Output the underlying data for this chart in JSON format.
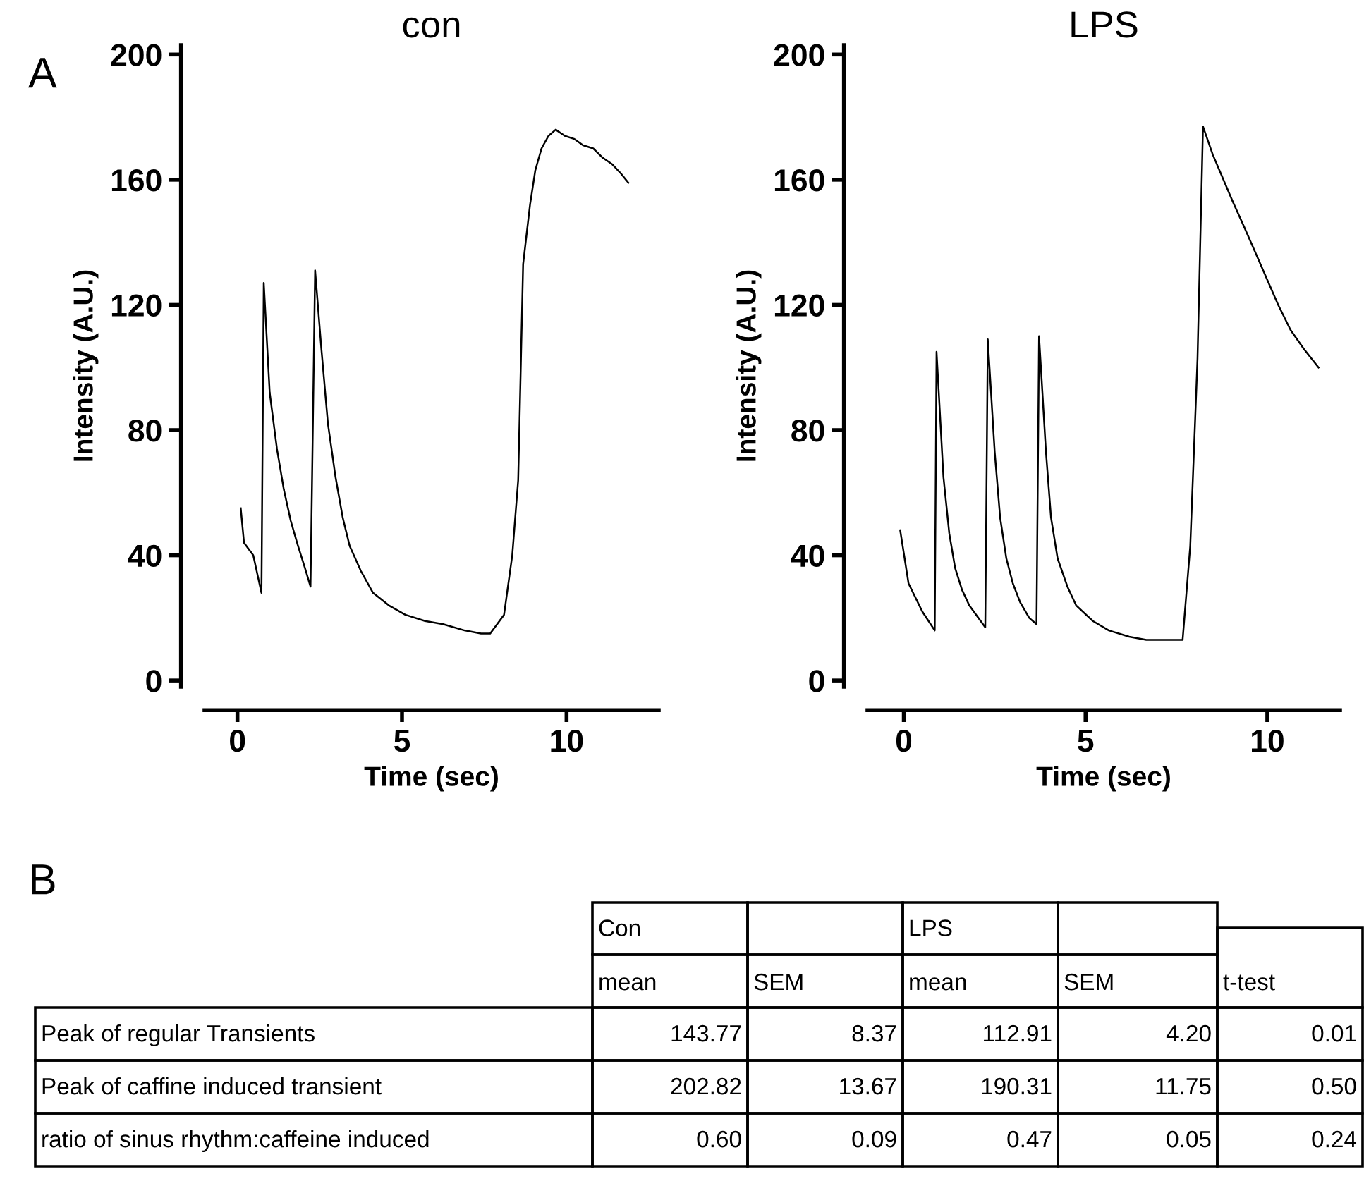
{
  "chart_data": [
    {
      "type": "line",
      "title": "con",
      "xlabel": "Time (sec)",
      "ylabel": "Intensity (A.U.)",
      "annotations": [
        "A"
      ],
      "xlim": [
        -1,
        12.8
      ],
      "ylim": [
        -2,
        203
      ],
      "xticks": [
        0,
        5,
        10
      ],
      "yticks": [
        0,
        40,
        80,
        120,
        160,
        200
      ],
      "series": [
        {
          "color": "#000000",
          "x": [
            0.1,
            0.2,
            0.48,
            0.73,
            0.8,
            0.98,
            1.2,
            1.41,
            1.62,
            1.84,
            2.05,
            2.22,
            2.36,
            2.55,
            2.75,
            2.98,
            3.2,
            3.41,
            3.75,
            4.12,
            4.6,
            5.1,
            5.7,
            6.25,
            6.9,
            7.4,
            7.68,
            8.1,
            8.35,
            8.53,
            8.68,
            8.89,
            9.05,
            9.24,
            9.45,
            9.67,
            9.95,
            10.24,
            10.5,
            10.81,
            11.1,
            11.38,
            11.65,
            11.88
          ],
          "values": [
            55,
            44,
            40,
            28,
            127,
            92,
            74,
            61,
            51,
            43,
            36,
            30,
            131,
            106,
            82,
            65,
            52,
            43,
            35,
            28,
            24,
            21,
            19,
            18,
            16,
            15,
            15,
            21,
            40,
            64,
            133,
            152,
            163,
            170,
            174,
            176,
            174,
            173,
            171,
            170,
            167,
            165,
            162,
            159
          ]
        }
      ]
    },
    {
      "type": "line",
      "title": "LPS",
      "xlabel": "Time (sec)",
      "ylabel": "Intensity (A.U.)",
      "xlim": [
        -1,
        12
      ],
      "ylim": [
        -2,
        203
      ],
      "xticks": [
        0,
        5,
        10
      ],
      "yticks": [
        0,
        40,
        80,
        120,
        160,
        200
      ],
      "series": [
        {
          "color": "#000000",
          "x": [
            -0.1,
            0.13,
            0.51,
            0.85,
            0.9,
            1.09,
            1.25,
            1.41,
            1.6,
            1.8,
            2.05,
            2.24,
            2.31,
            2.5,
            2.65,
            2.82,
            3.0,
            3.2,
            3.45,
            3.65,
            3.72,
            3.91,
            4.05,
            4.23,
            4.5,
            4.74,
            5.2,
            5.64,
            6.2,
            6.67,
            7.2,
            7.67,
            7.88,
            8.08,
            8.23,
            8.5,
            8.72,
            9.05,
            9.36,
            9.7,
            10.0,
            10.3,
            10.64,
            11.0,
            11.41
          ],
          "values": [
            48,
            31,
            22,
            16,
            105,
            65,
            47,
            36,
            29,
            24,
            20,
            17,
            109,
            73,
            52,
            39,
            31,
            25,
            20,
            18,
            110,
            73,
            52,
            39,
            30,
            24,
            19,
            16,
            14,
            13,
            13,
            13,
            43,
            103,
            177,
            168,
            162,
            153,
            145,
            136,
            128,
            120,
            112,
            106,
            100
          ]
        }
      ]
    },
    {
      "type": "other",
      "title": "B",
      "categories": [
        "Peak of regular Transients",
        "Peak of caffine induced transient",
        "ratio of sinus rhythm:caffeine induced"
      ],
      "annotations": [
        "Con",
        "LPS"
      ],
      "series": [
        {
          "name": "mean",
          "values": [
            143.77,
            202.82,
            0.6
          ],
          "value_labels": [
            "143.77",
            "202.82",
            "0.60"
          ]
        },
        {
          "name": "SEM",
          "values": [
            8.37,
            13.67,
            0.09
          ],
          "value_labels": [
            "8.37",
            "13.67",
            "0.09"
          ]
        },
        {
          "name": "mean",
          "values": [
            112.91,
            190.31,
            0.47
          ],
          "value_labels": [
            "112.91",
            "190.31",
            "0.47"
          ]
        },
        {
          "name": "SEM",
          "values": [
            4.2,
            11.75,
            0.05
          ],
          "value_labels": [
            "4.20",
            "11.75",
            "0.05"
          ]
        },
        {
          "name": "t-test",
          "values": [
            0.01,
            0.5,
            0.24
          ],
          "value_labels": [
            "0.01",
            "0.50",
            "0.24"
          ]
        }
      ]
    }
  ]
}
